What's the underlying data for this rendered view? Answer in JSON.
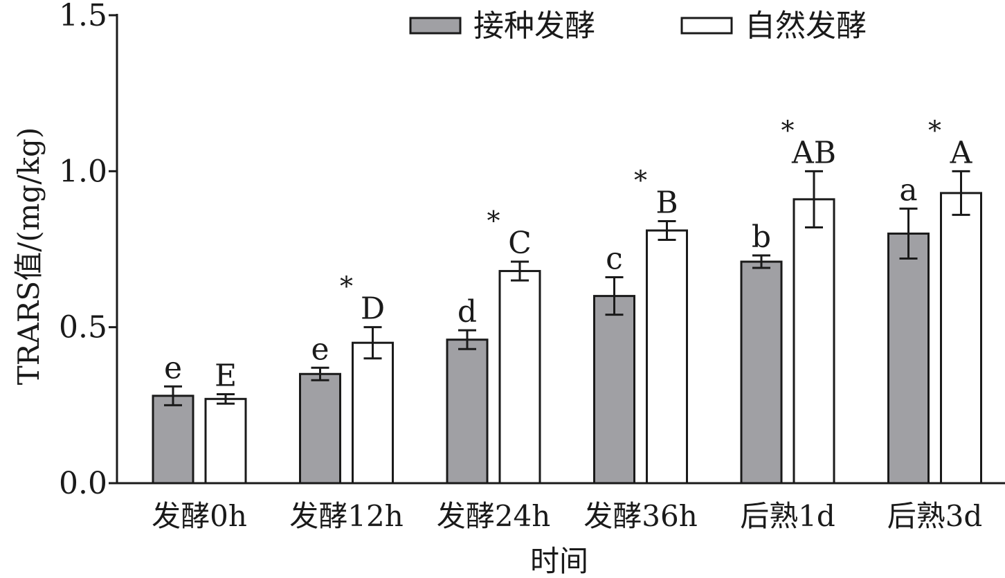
{
  "chart_data": {
    "type": "bar",
    "title": "",
    "xlabel": "时间",
    "ylabel": "TRARS值/(mg/kg)",
    "ylim": [
      0,
      1.5
    ],
    "yticks": [
      "0.0",
      "0.5",
      "1.0",
      "1.5"
    ],
    "ytick_values": [
      0,
      0.5,
      1.0,
      1.5
    ],
    "legend_position": "top-right",
    "grid": false,
    "categories": [
      "发酵0h",
      "发酵12h",
      "发酵24h",
      "发酵36h",
      "后熟1d",
      "后熟3d"
    ],
    "series": [
      {
        "name": "接种发酵",
        "color": "#a0a0a4",
        "values": [
          0.28,
          0.35,
          0.46,
          0.6,
          0.71,
          0.8
        ],
        "errors": [
          0.03,
          0.02,
          0.03,
          0.06,
          0.02,
          0.08
        ],
        "labels": [
          "e",
          "e",
          "d",
          "c",
          "b",
          "a"
        ]
      },
      {
        "name": "自然发酵",
        "color": "#ffffff",
        "values": [
          0.27,
          0.45,
          0.68,
          0.81,
          0.91,
          0.93
        ],
        "errors": [
          0.015,
          0.05,
          0.03,
          0.03,
          0.09,
          0.07
        ],
        "labels": [
          "E",
          "D",
          "C",
          "B",
          "AB",
          "A"
        ]
      }
    ],
    "significance": [
      "",
      "*",
      "*",
      "*",
      "*",
      "*"
    ]
  }
}
